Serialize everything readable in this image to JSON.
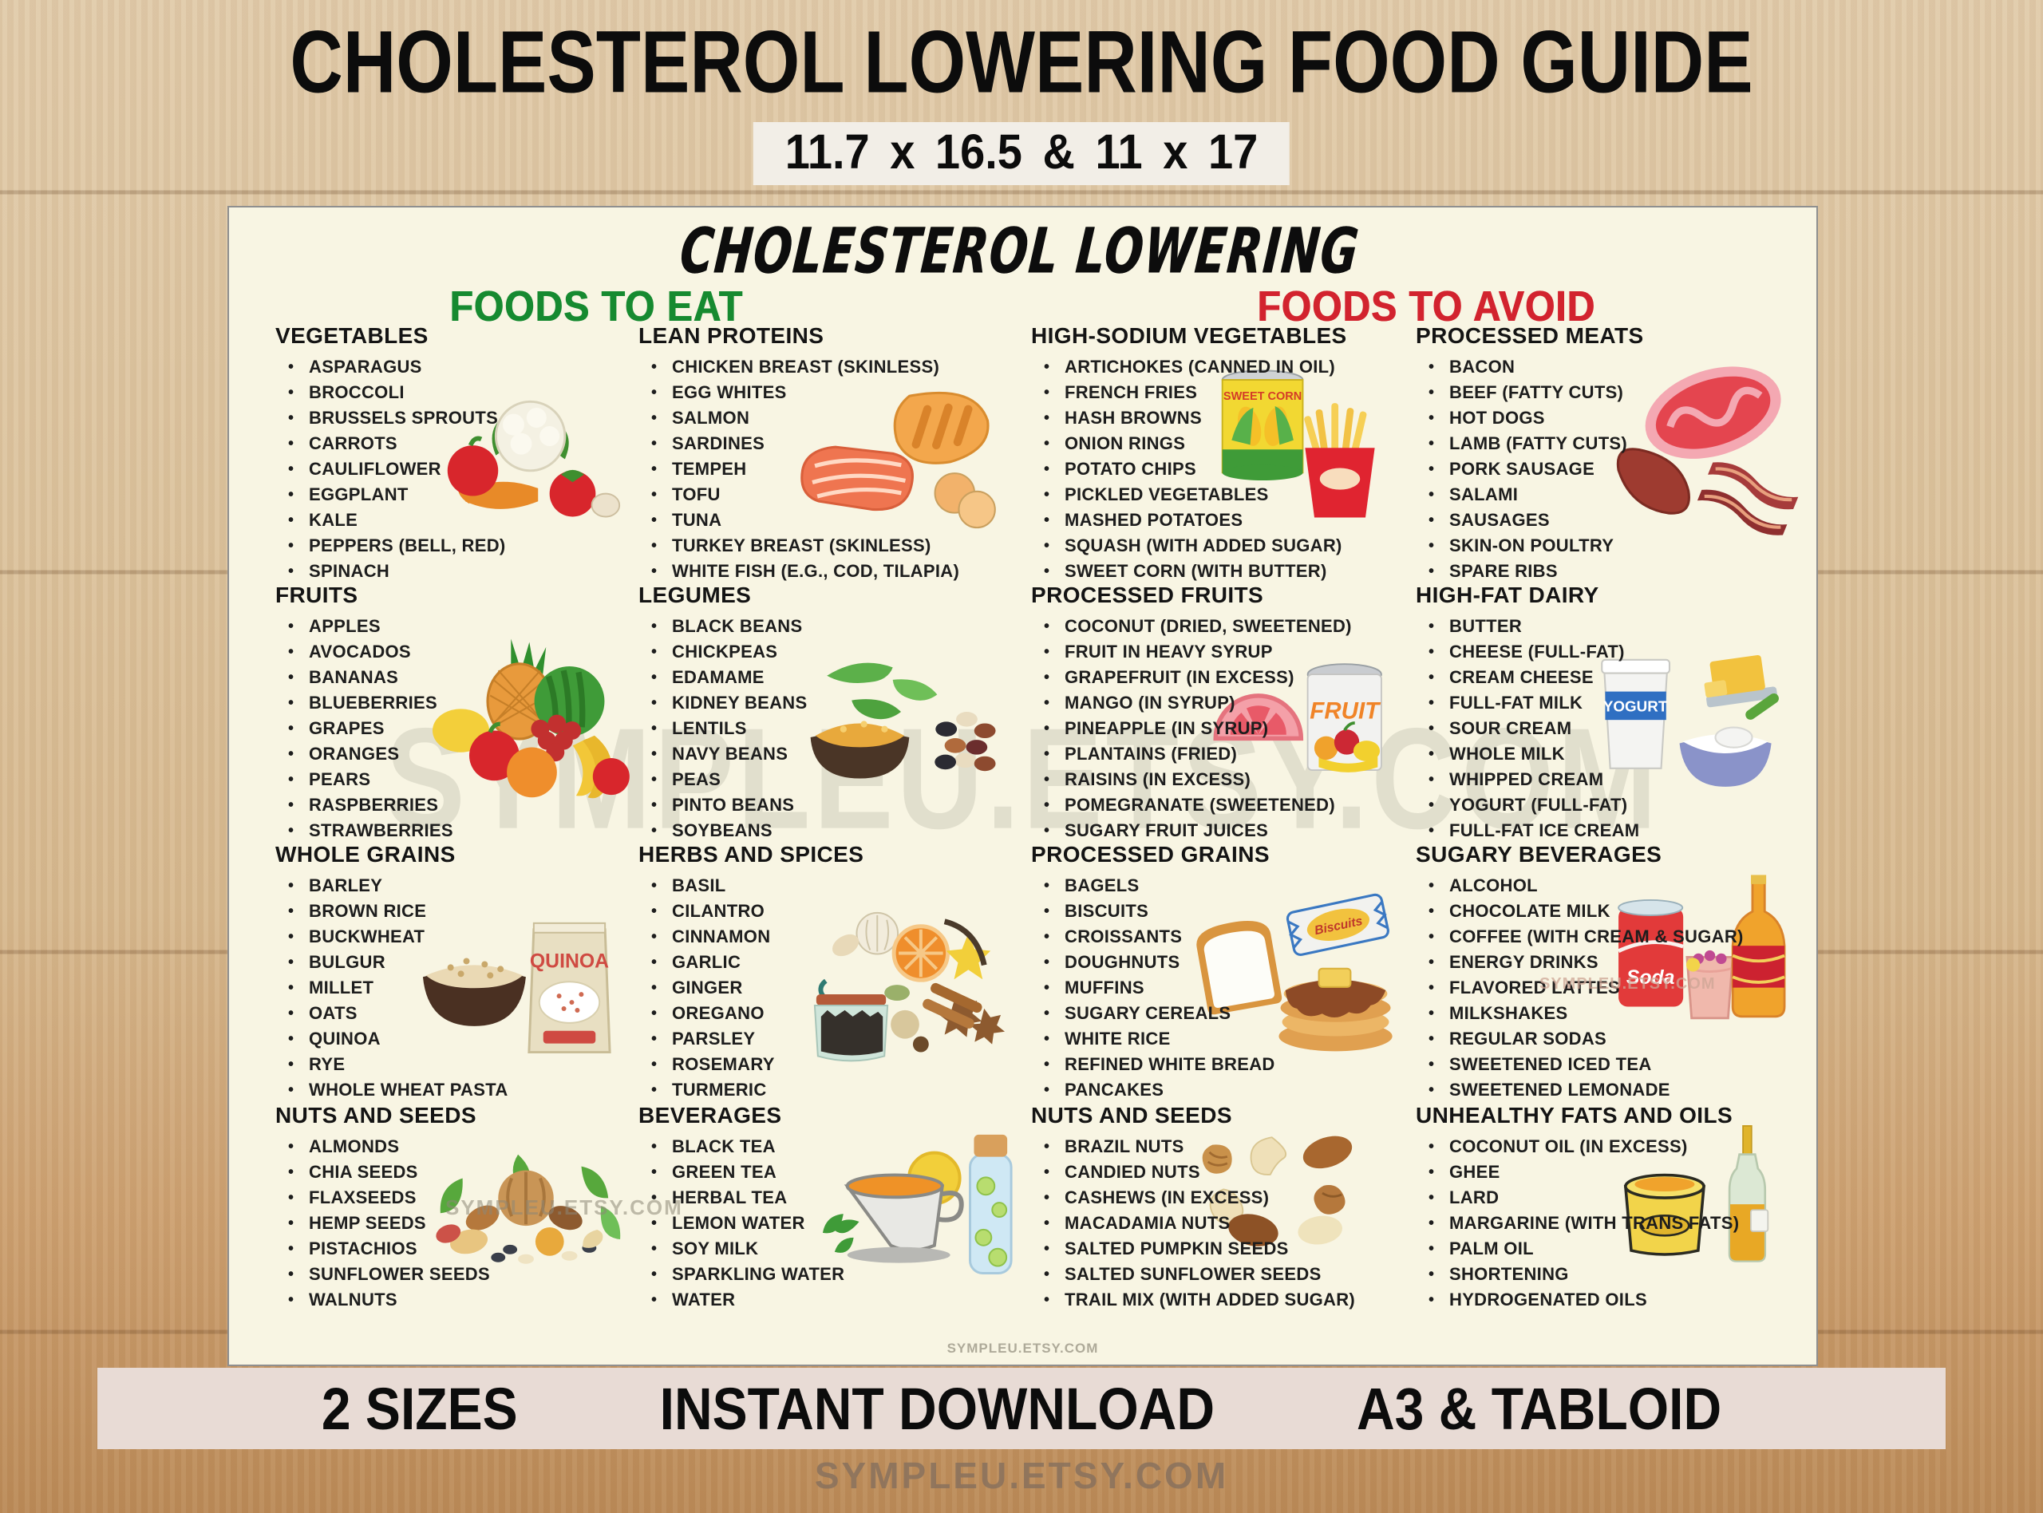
{
  "page": {
    "main_title": "CHOLESTEROL LOWERING FOOD GUIDE",
    "size_banner": "11.7 x 16.5 & 11 x 17",
    "footer_badges": [
      "2 SIZES",
      "INSTANT DOWNLOAD",
      "A3 & TABLOID"
    ],
    "store_url": "SYMPLEU.ETSY.COM"
  },
  "poster": {
    "title": "CHOLESTEROL LOWERING",
    "eat_header": {
      "label": "FOODS TO EAT",
      "color": "#168a30"
    },
    "avoid_header": {
      "label": "FOODS TO AVOID",
      "color": "#d2232e"
    },
    "watermark": "SYMPLEU.ETSY.COM",
    "colors": {
      "paper": "#f8f5e3",
      "text": "#1d1d1d"
    },
    "illustration_labels": {
      "corn_can": "SWEET CORN",
      "fruit_can": "FRUIT",
      "yogurt_cup": "YOGURT",
      "quinoa_bag": "QUINOA",
      "soda_can": "Soda",
      "biscuit_pack": "Biscuits"
    },
    "sections": [
      {
        "id": "vegetables",
        "title": "VEGETABLES",
        "side": "eat",
        "row": 0,
        "col": 0,
        "illustration": "vegetables",
        "items": [
          "ASPARAGUS",
          "BROCCOLI",
          "BRUSSELS SPROUTS",
          "CARROTS",
          "CAULIFLOWER",
          "EGGPLANT",
          "KALE",
          "PEPPERS (BELL, RED)",
          "SPINACH"
        ]
      },
      {
        "id": "lean-proteins",
        "title": "LEAN PROTEINS",
        "side": "eat",
        "row": 0,
        "col": 1,
        "illustration": "lean-proteins",
        "items": [
          "CHICKEN BREAST (SKINLESS)",
          "EGG WHITES",
          "SALMON",
          "SARDINES",
          "TEMPEH",
          "TOFU",
          "TUNA",
          "TURKEY BREAST (SKINLESS)",
          "WHITE FISH (E.G., COD, TILAPIA)"
        ]
      },
      {
        "id": "high-sodium-vegetables",
        "title": "HIGH-SODIUM VEGETABLES",
        "side": "avoid",
        "row": 0,
        "col": 2,
        "illustration": "high-sodium-veg",
        "items": [
          "ARTICHOKES (CANNED IN OIL)",
          "FRENCH FRIES",
          "HASH BROWNS",
          "ONION RINGS",
          "POTATO CHIPS",
          "PICKLED VEGETABLES",
          "MASHED POTATOES",
          "SQUASH (WITH ADDED SUGAR)",
          "SWEET CORN (WITH BUTTER)"
        ]
      },
      {
        "id": "processed-meats",
        "title": "PROCESSED MEATS",
        "side": "avoid",
        "row": 0,
        "col": 3,
        "illustration": "processed-meats",
        "items": [
          "BACON",
          "BEEF (FATTY CUTS)",
          "HOT DOGS",
          "LAMB (FATTY CUTS)",
          "PORK SAUSAGE",
          "SALAMI",
          "SAUSAGES",
          "SKIN-ON POULTRY",
          "SPARE RIBS"
        ]
      },
      {
        "id": "fruits",
        "title": "FRUITS",
        "side": "eat",
        "row": 1,
        "col": 0,
        "illustration": "fruits",
        "items": [
          "APPLES",
          "AVOCADOS",
          "BANANAS",
          "BLUEBERRIES",
          "GRAPES",
          "ORANGES",
          "PEARS",
          "RASPBERRIES",
          "STRAWBERRIES"
        ]
      },
      {
        "id": "legumes",
        "title": "LEGUMES",
        "side": "eat",
        "row": 1,
        "col": 1,
        "illustration": "legumes",
        "items": [
          "BLACK BEANS",
          "CHICKPEAS",
          "EDAMAME",
          "KIDNEY BEANS",
          "LENTILS",
          "NAVY BEANS",
          "PEAS",
          "PINTO BEANS",
          "SOYBEANS"
        ]
      },
      {
        "id": "processed-fruits",
        "title": "PROCESSED FRUITS",
        "side": "avoid",
        "row": 1,
        "col": 2,
        "illustration": "processed-fruits",
        "items": [
          "COCONUT (DRIED, SWEETENED)",
          "FRUIT IN HEAVY SYRUP",
          "GRAPEFRUIT (IN EXCESS)",
          "MANGO (IN SYRUP)",
          "PINEAPPLE (IN SYRUP)",
          "PLANTAINS (FRIED)",
          "RAISINS (IN EXCESS)",
          "POMEGRANATE (SWEETENED)",
          "SUGARY FRUIT JUICES"
        ]
      },
      {
        "id": "high-fat-dairy",
        "title": "HIGH-FAT DAIRY",
        "side": "avoid",
        "row": 1,
        "col": 3,
        "illustration": "high-fat-dairy",
        "items": [
          "BUTTER",
          "CHEESE (FULL-FAT)",
          "CREAM CHEESE",
          "FULL-FAT MILK",
          "SOUR CREAM",
          "WHOLE MILK",
          "WHIPPED CREAM",
          "YOGURT (FULL-FAT)",
          "FULL-FAT ICE CREAM"
        ]
      },
      {
        "id": "whole-grains",
        "title": "WHOLE GRAINS",
        "side": "eat",
        "row": 2,
        "col": 0,
        "illustration": "whole-grains",
        "items": [
          "BARLEY",
          "BROWN RICE",
          "BUCKWHEAT",
          "BULGUR",
          "MILLET",
          "OATS",
          "QUINOA",
          "RYE",
          "WHOLE WHEAT PASTA"
        ]
      },
      {
        "id": "herbs-and-spices",
        "title": "HERBS AND SPICES",
        "side": "eat",
        "row": 2,
        "col": 1,
        "illustration": "herbs-spices",
        "items": [
          "BASIL",
          "CILANTRO",
          "CINNAMON",
          "GARLIC",
          "GINGER",
          "OREGANO",
          "PARSLEY",
          "ROSEMARY",
          "TURMERIC"
        ]
      },
      {
        "id": "processed-grains",
        "title": "PROCESSED GRAINS",
        "side": "avoid",
        "row": 2,
        "col": 2,
        "illustration": "processed-grains",
        "items": [
          "BAGELS",
          "BISCUITS",
          "CROISSANTS",
          "DOUGHNUTS",
          "MUFFINS",
          "SUGARY CEREALS",
          "WHITE RICE",
          "REFINED WHITE BREAD",
          "PANCAKES"
        ]
      },
      {
        "id": "sugary-beverages",
        "title": "SUGARY BEVERAGES",
        "side": "avoid",
        "row": 2,
        "col": 3,
        "illustration": "sugary-beverages",
        "items": [
          "ALCOHOL",
          "CHOCOLATE MILK",
          "COFFEE (WITH CREAM & SUGAR)",
          "ENERGY DRINKS",
          "FLAVORED LATTES",
          "MILKSHAKES",
          "REGULAR SODAS",
          "SWEETENED ICED TEA",
          "SWEETENED LEMONADE"
        ]
      },
      {
        "id": "nuts-and-seeds-eat",
        "title": "NUTS AND SEEDS",
        "side": "eat",
        "row": 3,
        "col": 0,
        "illustration": "nuts-seeds-eat",
        "items": [
          "ALMONDS",
          "CHIA SEEDS",
          "FLAXSEEDS",
          "HEMP SEEDS",
          "PISTACHIOS",
          "SUNFLOWER SEEDS",
          "WALNUTS"
        ]
      },
      {
        "id": "beverages",
        "title": "BEVERAGES",
        "side": "eat",
        "row": 3,
        "col": 1,
        "illustration": "beverages",
        "items": [
          "BLACK TEA",
          "GREEN TEA",
          "HERBAL TEA",
          "LEMON WATER",
          "SOY MILK",
          "SPARKLING WATER",
          "WATER"
        ]
      },
      {
        "id": "nuts-and-seeds-avoid",
        "title": "NUTS AND SEEDS",
        "side": "avoid",
        "row": 3,
        "col": 2,
        "illustration": "nuts-seeds-avoid",
        "items": [
          "BRAZIL NUTS",
          "CANDIED NUTS",
          "CASHEWS (IN EXCESS)",
          "MACADAMIA NUTS",
          "SALTED PUMPKIN SEEDS",
          "SALTED SUNFLOWER SEEDS",
          "TRAIL MIX (WITH ADDED SUGAR)"
        ]
      },
      {
        "id": "unhealthy-fats-and-oils",
        "title": "UNHEALTHY FATS AND OILS",
        "side": "avoid",
        "row": 3,
        "col": 3,
        "illustration": "fats-oils",
        "items": [
          "COCONUT OIL (IN EXCESS)",
          "GHEE",
          "LARD",
          "MARGARINE (WITH TRANS FATS)",
          "PALM OIL",
          "SHORTENING",
          "HYDROGENATED OILS"
        ]
      }
    ]
  }
}
